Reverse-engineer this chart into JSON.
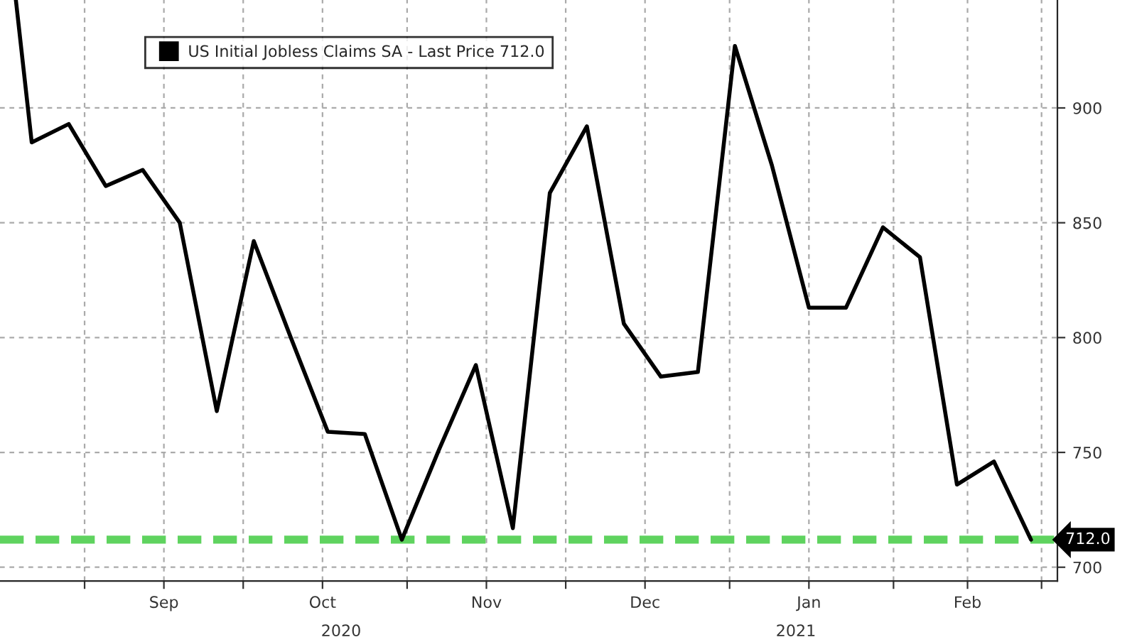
{
  "chart_data": {
    "type": "line",
    "x": [
      "2020-08-19",
      "2020-08-22",
      "2020-08-29",
      "2020-09-05",
      "2020-09-12",
      "2020-09-19",
      "2020-09-26",
      "2020-10-03",
      "2020-10-10",
      "2020-10-17",
      "2020-10-24",
      "2020-10-31",
      "2020-11-07",
      "2020-11-14",
      "2020-11-21",
      "2020-11-28",
      "2020-12-05",
      "2020-12-12",
      "2020-12-19",
      "2020-12-26",
      "2021-01-02",
      "2021-01-09",
      "2021-01-16",
      "2021-01-23",
      "2021-01-30",
      "2021-02-06",
      "2021-02-13",
      "2021-02-20",
      "2021-02-27"
    ],
    "series": [
      {
        "name": "US Initial Jobless Claims SA - Last Price 712.0",
        "color": "#000000",
        "values": [
          947,
          885,
          893,
          866,
          873,
          850,
          768,
          842,
          800,
          759,
          758,
          712,
          751,
          788,
          717,
          863,
          892,
          806,
          783,
          785,
          927,
          875,
          813,
          813,
          848,
          835,
          736,
          746,
          712
        ]
      }
    ],
    "xlim": [
      "2020-08-16",
      "2021-03-04"
    ],
    "xticks": [
      {
        "value": "2020-09-01",
        "label": null
      },
      {
        "value": "2020-09-16",
        "label": "Sep"
      },
      {
        "value": "2020-10-01",
        "label": null
      },
      {
        "value": "2020-10-16",
        "label": "Oct"
      },
      {
        "value": "2020-11-01",
        "label": null
      },
      {
        "value": "2020-11-16",
        "label": "Nov"
      },
      {
        "value": "2020-12-01",
        "label": null
      },
      {
        "value": "2020-12-16",
        "label": "Dec"
      },
      {
        "value": "2021-01-01",
        "label": null
      },
      {
        "value": "2021-01-16",
        "label": "Jan"
      },
      {
        "value": "2021-02-01",
        "label": null
      },
      {
        "value": "2021-02-15",
        "label": "Feb"
      },
      {
        "value": "2021-03-01",
        "label": null
      }
    ],
    "ylim": [
      694,
      947
    ],
    "yticks": [
      700,
      750,
      800,
      850,
      900
    ],
    "grid": true,
    "legend": "top",
    "line_style": "solid",
    "marker": "none",
    "ref_lines": [
      {
        "axis": "y",
        "value": 712,
        "label": "712.0",
        "color": "#5fd35f",
        "line_style": "dashed"
      }
    ],
    "annotations": [
      "2020",
      "2021"
    ]
  }
}
